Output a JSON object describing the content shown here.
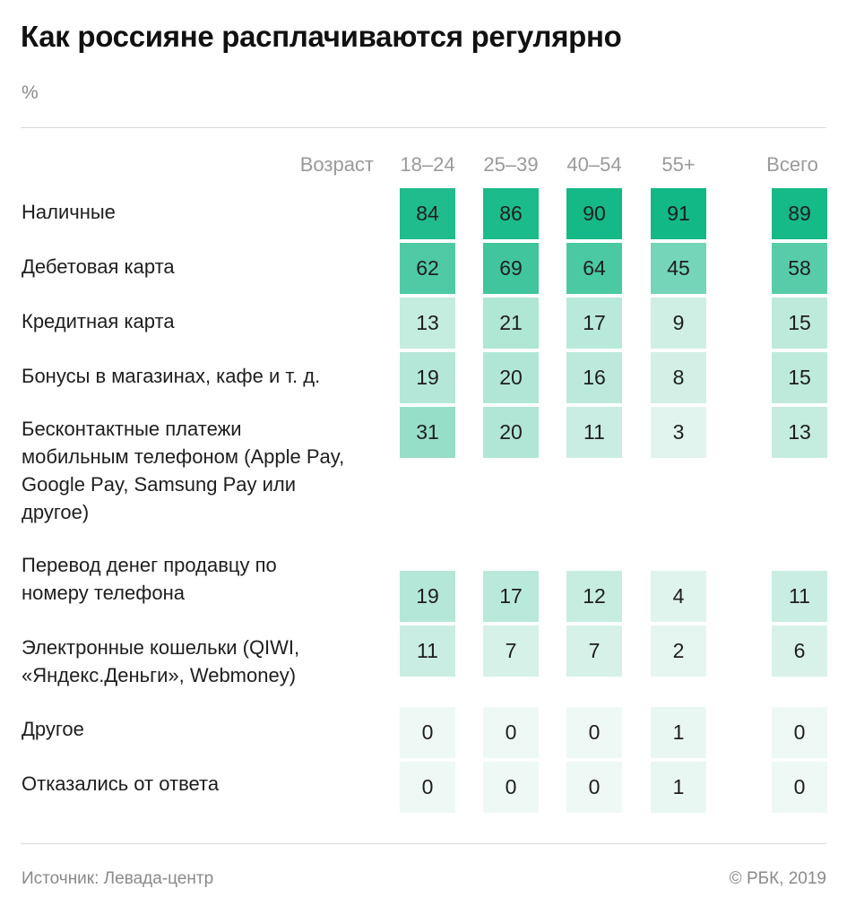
{
  "header": {
    "title": "Как россияне расплачиваются регулярно",
    "unit": "%"
  },
  "footer": {
    "source": "Источник: Левада-центр",
    "copyright": "© РБК, 2019"
  },
  "colors": {
    "scale_low": "#eef8f4",
    "scale_high": "#12b886",
    "text": "#1e1e1e",
    "muted": "#8a8a8a"
  },
  "chart_data": {
    "type": "table",
    "title": "Как россияне расплачиваются регулярно",
    "unit": "%",
    "column_header_label": "Возраст",
    "columns": [
      "18–24",
      "25–39",
      "40–54",
      "55+",
      "Всего"
    ],
    "rows": [
      {
        "label": "Наличные",
        "values": [
          84,
          86,
          90,
          91,
          89
        ]
      },
      {
        "label": "Дебетовая карта",
        "values": [
          62,
          69,
          64,
          45,
          58
        ]
      },
      {
        "label": "Кредитная карта",
        "values": [
          13,
          21,
          17,
          9,
          15
        ]
      },
      {
        "label": "Бонусы в магазинах, кафе и т. д.",
        "values": [
          19,
          20,
          16,
          8,
          15
        ]
      },
      {
        "label": "Бесконтактные платежи мобильным телефоном (Apple Pay, Google Pay, Samsung Pay или другое)",
        "values": [
          31,
          20,
          11,
          3,
          13
        ]
      },
      {
        "label": "Перевод денег продавцу по номеру телефона",
        "values": [
          19,
          17,
          12,
          4,
          11
        ]
      },
      {
        "label": "Электронные кошельки (QIWI, «Яндекс.Деньги», Webmoney)",
        "values": [
          11,
          7,
          7,
          2,
          6
        ]
      },
      {
        "label": "Другое",
        "values": [
          0,
          0,
          0,
          1,
          0
        ]
      },
      {
        "label": "Отказались от ответа",
        "values": [
          0,
          0,
          0,
          1,
          0
        ]
      }
    ]
  }
}
